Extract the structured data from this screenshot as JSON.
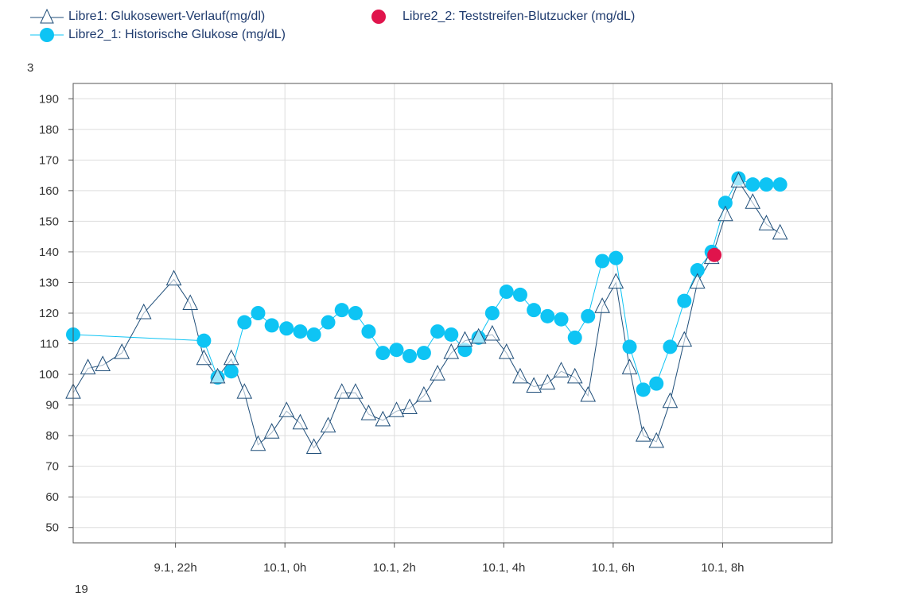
{
  "legend": {
    "series1": "Libre1: Glukosewert-Verlauf(mg/dl)",
    "series2": "Libre2_1: Historische Glukose (mg/dL)",
    "series3": "Libre2_2: Teststreifen-Blutzucker (mg/dL)"
  },
  "corner_top_left": "3",
  "corner_bottom_left": "19",
  "colors": {
    "series1": "#1f4e79",
    "series2": "#0ec4f4",
    "series3": "#e0144c",
    "grid": "#dddddd",
    "frame": "#555555"
  },
  "chart_data": {
    "type": "line",
    "ylim": [
      45,
      195
    ],
    "xlim": [
      -3.87,
      10.0
    ],
    "yticks": [
      50,
      60,
      70,
      80,
      90,
      100,
      110,
      120,
      130,
      140,
      150,
      160,
      170,
      180,
      190
    ],
    "xticks": [
      {
        "x": -2.0,
        "label": "9.1,  22h"
      },
      {
        "x": 0.0,
        "label": "10.1,  0h"
      },
      {
        "x": 2.0,
        "label": "10.1,  2h"
      },
      {
        "x": 4.0,
        "label": "10.1,  4h"
      },
      {
        "x": 6.0,
        "label": "10.1,  6h"
      },
      {
        "x": 8.0,
        "label": "10.1,  8h"
      }
    ],
    "series": [
      {
        "name": "Libre1: Glukosewert-Verlauf(mg/dl)",
        "marker": "triangle",
        "points": [
          [
            -3.87,
            94
          ],
          [
            -3.6,
            102
          ],
          [
            -3.33,
            103
          ],
          [
            -2.98,
            107
          ],
          [
            -2.58,
            120
          ],
          [
            -2.03,
            131
          ],
          [
            -1.73,
            123
          ],
          [
            -1.48,
            105
          ],
          [
            -1.23,
            99
          ],
          [
            -0.98,
            105
          ],
          [
            -0.74,
            94
          ],
          [
            -0.49,
            77
          ],
          [
            -0.24,
            81
          ],
          [
            0.03,
            88
          ],
          [
            0.28,
            84
          ],
          [
            0.53,
            76
          ],
          [
            0.79,
            83
          ],
          [
            1.04,
            94
          ],
          [
            1.29,
            94
          ],
          [
            1.53,
            87
          ],
          [
            1.79,
            85
          ],
          [
            2.04,
            88
          ],
          [
            2.28,
            89
          ],
          [
            2.54,
            93
          ],
          [
            2.79,
            100
          ],
          [
            3.04,
            107
          ],
          [
            3.29,
            111
          ],
          [
            3.54,
            112
          ],
          [
            3.79,
            113
          ],
          [
            4.05,
            107
          ],
          [
            4.3,
            99
          ],
          [
            4.55,
            96
          ],
          [
            4.8,
            97
          ],
          [
            5.05,
            101
          ],
          [
            5.3,
            99
          ],
          [
            5.54,
            93
          ],
          [
            5.8,
            122
          ],
          [
            6.05,
            130
          ],
          [
            6.3,
            102
          ],
          [
            6.55,
            80
          ],
          [
            6.79,
            78
          ],
          [
            7.04,
            91
          ],
          [
            7.3,
            111
          ],
          [
            7.54,
            130
          ],
          [
            7.8,
            138
          ],
          [
            8.05,
            152
          ],
          [
            8.29,
            163
          ],
          [
            8.55,
            156
          ],
          [
            8.8,
            149
          ],
          [
            9.05,
            146
          ]
        ]
      },
      {
        "name": "Libre2_1: Historische Glukose (mg/dL)",
        "marker": "circle",
        "points": [
          [
            -3.87,
            113
          ],
          [
            -1.48,
            111
          ],
          [
            -1.23,
            99
          ],
          [
            -0.98,
            101
          ],
          [
            -0.74,
            117
          ],
          [
            -0.49,
            120
          ],
          [
            -0.24,
            116
          ],
          [
            0.03,
            115
          ],
          [
            0.28,
            114
          ],
          [
            0.53,
            113
          ],
          [
            0.79,
            117
          ],
          [
            1.04,
            121
          ],
          [
            1.29,
            120
          ],
          [
            1.53,
            114
          ],
          [
            1.79,
            107
          ],
          [
            2.04,
            108
          ],
          [
            2.28,
            106
          ],
          [
            2.54,
            107
          ],
          [
            2.79,
            114
          ],
          [
            3.04,
            113
          ],
          [
            3.29,
            108
          ],
          [
            3.54,
            112
          ],
          [
            3.79,
            120
          ],
          [
            4.05,
            127
          ],
          [
            4.3,
            126
          ],
          [
            4.55,
            121
          ],
          [
            4.8,
            119
          ],
          [
            5.05,
            118
          ],
          [
            5.3,
            112
          ],
          [
            5.54,
            119
          ],
          [
            5.8,
            137
          ],
          [
            6.05,
            138
          ],
          [
            6.3,
            109
          ],
          [
            6.55,
            95
          ],
          [
            6.79,
            97
          ],
          [
            7.04,
            109
          ],
          [
            7.3,
            124
          ],
          [
            7.54,
            134
          ],
          [
            7.8,
            140
          ],
          [
            8.05,
            156
          ],
          [
            8.29,
            164
          ],
          [
            8.55,
            162
          ],
          [
            8.8,
            162
          ],
          [
            9.05,
            162
          ]
        ]
      },
      {
        "name": "Libre2_2: Teststreifen-Blutzucker (mg/dL)",
        "marker": "circle",
        "points": [
          [
            7.85,
            139
          ]
        ]
      }
    ]
  }
}
